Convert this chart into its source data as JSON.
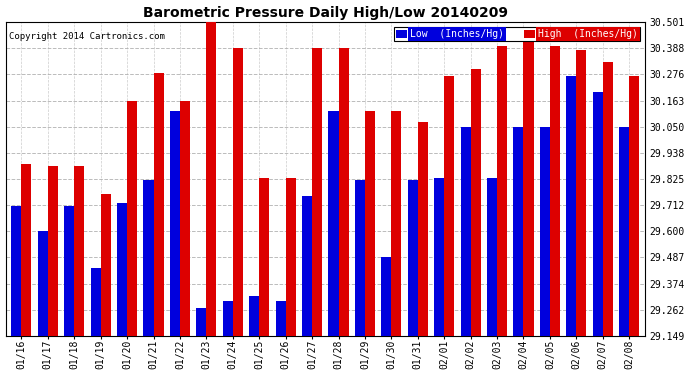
{
  "title": "Barometric Pressure Daily High/Low 20140209",
  "copyright": "Copyright 2014 Cartronics.com",
  "legend_low": "Low  (Inches/Hg)",
  "legend_high": "High  (Inches/Hg)",
  "low_color": "#0000dd",
  "high_color": "#dd0000",
  "background_color": "#ffffff",
  "plot_bg_color": "#ffffff",
  "ylim_min": 29.149,
  "ylim_max": 30.501,
  "yticks": [
    29.149,
    29.262,
    29.374,
    29.487,
    29.6,
    29.712,
    29.825,
    29.938,
    30.05,
    30.163,
    30.276,
    30.388,
    30.501
  ],
  "dates": [
    "01/16",
    "01/17",
    "01/18",
    "01/19",
    "01/20",
    "01/21",
    "01/22",
    "01/23",
    "01/24",
    "01/25",
    "01/26",
    "01/27",
    "01/28",
    "01/29",
    "01/30",
    "01/31",
    "02/01",
    "02/02",
    "02/03",
    "02/04",
    "02/05",
    "02/06",
    "02/07",
    "02/08"
  ],
  "low_values": [
    29.71,
    29.6,
    29.71,
    29.44,
    29.72,
    29.82,
    30.12,
    29.27,
    29.3,
    29.32,
    29.3,
    29.75,
    30.12,
    29.82,
    29.49,
    29.82,
    29.83,
    30.05,
    29.83,
    30.05,
    30.05,
    30.27,
    30.2,
    30.05
  ],
  "high_values": [
    29.89,
    29.88,
    29.88,
    29.76,
    30.16,
    30.28,
    30.16,
    30.5,
    30.39,
    29.83,
    29.83,
    30.39,
    30.39,
    30.12,
    30.12,
    30.07,
    30.27,
    30.3,
    30.4,
    30.42,
    30.4,
    30.38,
    30.33,
    30.27
  ],
  "grid_color": "#aaaaaa",
  "bar_width": 0.38
}
